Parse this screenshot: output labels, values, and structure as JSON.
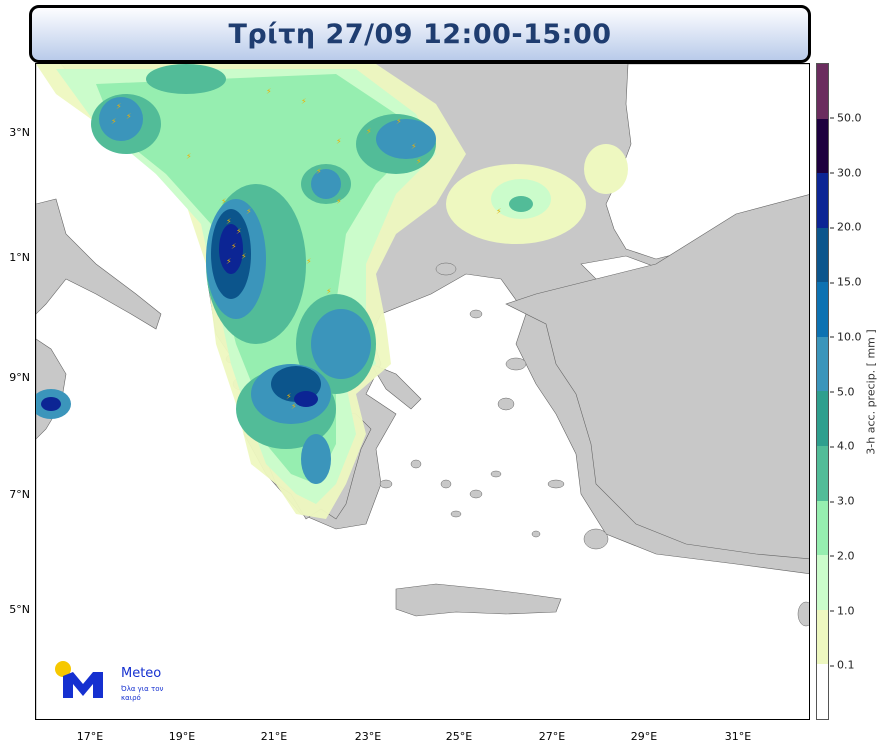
{
  "header": {
    "title": "Τρίτη 27/09 12:00-15:00"
  },
  "map": {
    "lat_labels": [
      "3°N",
      "1°N",
      "9°N",
      "7°N",
      "5°N"
    ],
    "lon_labels": [
      "17°E",
      "19°E",
      "21°E",
      "23°E",
      "25°E",
      "27°E",
      "29°E",
      "31°E"
    ],
    "land_color": "#c8c8c8",
    "sea_color": "#ffffff",
    "lightning_icon": "lightning-bolt-icon"
  },
  "colorbar": {
    "label": "3-h acc. precip. [ mm ]",
    "ticks": [
      "50.0",
      "30.0",
      "20.0",
      "15.0",
      "10.0",
      "5.0",
      "4.0",
      "3.0",
      "2.0",
      "1.0",
      "0.1"
    ],
    "colors": [
      "#6b2d5f",
      "#1d003f",
      "#0c2594",
      "#0c558c",
      "#0d72b2",
      "#3b95bb",
      "#2f9f8e",
      "#52bc98",
      "#96eeb0",
      "#cbfccb",
      "#eef8c0",
      "#ffffff"
    ]
  },
  "logo": {
    "name": "Meteo",
    "slogan": "Όλα για τον καιρό"
  }
}
